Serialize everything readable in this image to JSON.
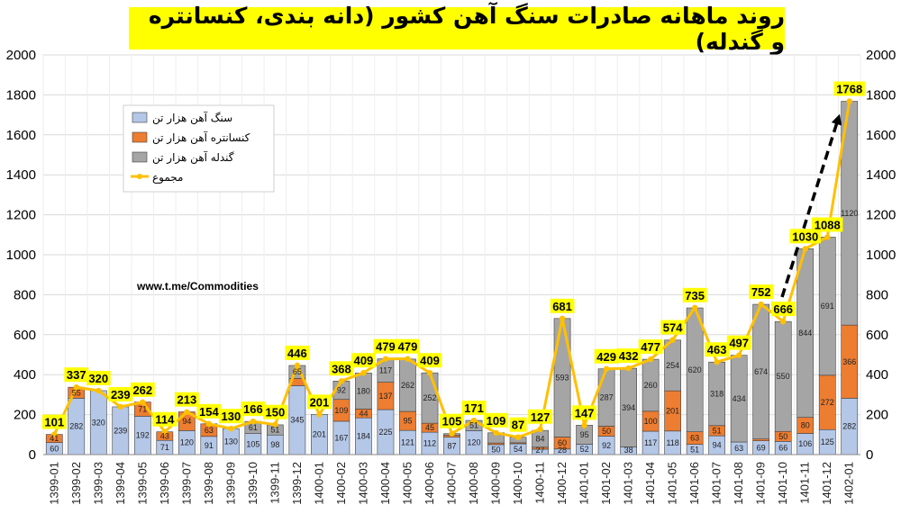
{
  "title": "روند ماهانه صادرات سنگ آهن کشور (دانه بندی، کنسانتره و گندله)",
  "watermark_url": "www.t.me/Commodities",
  "colors": {
    "ore": "#b4c7e7",
    "concentrate": "#ed7d31",
    "pellet": "#a5a5a5",
    "total_line": "#ffc000",
    "total_label_bg": "#ffff00",
    "grid": "#d9d9d9",
    "arrow": "#000000"
  },
  "chart_data": {
    "type": "bar",
    "stacked": true,
    "title": "روند ماهانه صادرات سنگ آهن کشور (دانه بندی، کنسانتره و گندله)",
    "ylim": [
      0,
      2000
    ],
    "y_ticks": [
      0,
      200,
      400,
      600,
      800,
      1000,
      1200,
      1400,
      1600,
      1800,
      2000
    ],
    "secondary_y_ticks": [
      0,
      200,
      400,
      600,
      800,
      1000,
      1200,
      1400,
      1600,
      1800,
      2000
    ],
    "grid": true,
    "legend_position": "top-left",
    "categories": [
      "1399-01",
      "1399-02",
      "1399-03",
      "1399-04",
      "1399-05",
      "1399-06",
      "1399-07",
      "1399-08",
      "1399-09",
      "1399-10",
      "1399-11",
      "1399-12",
      "1400-01",
      "1400-02",
      "1400-03",
      "1400-04",
      "1400-05",
      "1400-06",
      "1400-07",
      "1400-08",
      "1400-09",
      "1400-10",
      "1400-11",
      "1400-12",
      "1401-01",
      "1401-02",
      "1401-03",
      "1401-04",
      "1401-05",
      "1401-06",
      "1401-07",
      "1401-08",
      "1401-09",
      "1401-10",
      "1401-11",
      "1401-12",
      "1402-01"
    ],
    "series": [
      {
        "name": "سنگ آهن هزار تن",
        "key": "ore",
        "values": [
          60,
          282,
          320,
          239,
          192,
          71,
          120,
          91,
          130,
          105,
          98,
          345,
          201,
          167,
          184,
          225,
          121,
          112,
          87,
          120,
          50,
          54,
          27,
          28,
          52,
          92,
          38,
          117,
          118,
          51,
          94,
          63,
          69,
          66,
          106,
          125,
          282
        ],
        "labels": [
          "60",
          "282",
          "320",
          "239",
          "192",
          "71",
          "120",
          "91",
          "130",
          "105",
          "98",
          "345",
          "201",
          "167",
          "184",
          "225",
          "121",
          "112",
          "87",
          "120",
          "50",
          "54",
          "27",
          "28",
          "52",
          "92",
          "38",
          "117",
          "118",
          "51",
          "94",
          "63",
          "69",
          "66",
          "106",
          "125",
          "282"
        ]
      },
      {
        "name": "کنسانتره آهن هزار تن",
        "key": "concentrate",
        "values": [
          41,
          55,
          0,
          0,
          71,
          43,
          94,
          63,
          0,
          0,
          0,
          36,
          0,
          109,
          44,
          137,
          95,
          45,
          10,
          0,
          8,
          5,
          10,
          60,
          0,
          50,
          0,
          100,
          201,
          63,
          51,
          0,
          9,
          50,
          80,
          272,
          366
        ],
        "labels": [
          "41",
          "55",
          "",
          "",
          "71",
          "43",
          "94",
          "63",
          "",
          "",
          "",
          "",
          "",
          "109",
          "44",
          "137",
          "95",
          "45",
          "",
          "",
          "",
          "",
          "",
          "60",
          "",
          "50",
          "",
          "100",
          "201",
          "63",
          "51",
          "",
          "",
          "50",
          "80",
          "272",
          "366"
        ]
      },
      {
        "name": "گندله آهن هزار تن",
        "key": "pellet",
        "values": [
          0,
          0,
          0,
          0,
          0,
          0,
          0,
          0,
          0,
          61,
          51,
          65,
          0,
          92,
          180,
          117,
          262,
          252,
          8,
          51,
          51,
          28,
          84,
          593,
          95,
          287,
          394,
          260,
          254,
          620,
          318,
          434,
          674,
          550,
          844,
          691,
          1120
        ],
        "labels": [
          "",
          "",
          "",
          "",
          "",
          "",
          "",
          "",
          "",
          "61",
          "51",
          "65",
          "",
          "92",
          "180",
          "117",
          "262",
          "252",
          "",
          "51",
          "",
          "",
          "84",
          "593",
          "95",
          "287",
          "394",
          "260",
          "254",
          "620",
          "318",
          "434",
          "674",
          "550",
          "844",
          "691",
          "1120"
        ]
      }
    ],
    "total": {
      "name": "مجموع",
      "values": [
        101,
        337,
        320,
        239,
        262,
        114,
        213,
        154,
        130,
        166,
        150,
        446,
        201,
        368,
        409,
        479,
        479,
        409,
        105,
        171,
        109,
        87,
        127,
        681,
        147,
        429,
        432,
        477,
        574,
        735,
        463,
        497,
        752,
        666,
        1030,
        1088,
        1768
      ]
    }
  }
}
